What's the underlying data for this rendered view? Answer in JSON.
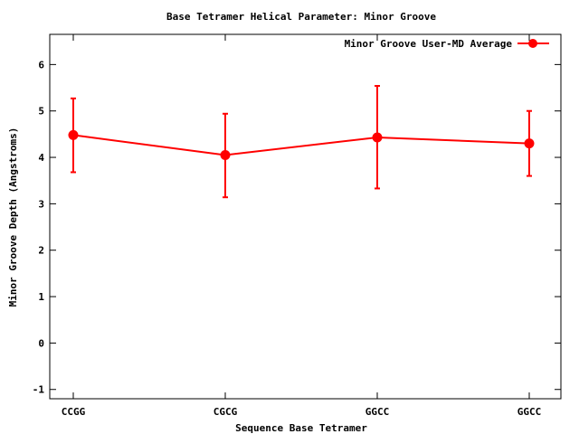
{
  "chart_data": {
    "type": "line",
    "title": "Base Tetramer Helical Parameter: Minor Groove",
    "xlabel": "Sequence Base Tetramer",
    "ylabel": "Minor Groove Depth (Angstroms)",
    "categories": [
      "CCGG",
      "CGCG",
      "GGCC",
      "GGCC"
    ],
    "ylim": [
      -1.2,
      6.65
    ],
    "yticks": [
      -1,
      0,
      1,
      2,
      3,
      4,
      5,
      6
    ],
    "legend_position": "top-right",
    "grid": false,
    "series": [
      {
        "name": "Minor Groove User-MD Average",
        "color": "#ff0000",
        "values": [
          4.48,
          4.05,
          4.43,
          4.3
        ],
        "error_low": [
          3.68,
          3.14,
          3.33,
          3.6
        ],
        "error_high": [
          5.27,
          4.94,
          5.54,
          5.0
        ]
      }
    ]
  }
}
